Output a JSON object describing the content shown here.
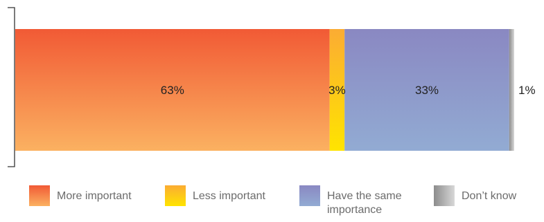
{
  "chart_data": {
    "type": "bar",
    "orientation": "horizontal-stacked-100",
    "categories": [
      ""
    ],
    "series": [
      {
        "name": "More important",
        "values": [
          63
        ],
        "label": "63%",
        "color_top": "#f15a35",
        "color_bottom": "#fbb161"
      },
      {
        "name": "Less important",
        "values": [
          3
        ],
        "label": "3%",
        "color_top": "#fbac33",
        "color_bottom": "#ffe400"
      },
      {
        "name": "Have the same importance",
        "values": [
          33
        ],
        "label": "33%",
        "color_top": "#8a88c2",
        "color_bottom": "#92abd3"
      },
      {
        "name": "Don’t know",
        "values": [
          1
        ],
        "label": "1%",
        "color_top": "#8c8c8c",
        "color_bottom": "#d8d8d8"
      }
    ],
    "xlim": [
      0,
      100
    ],
    "grid": false,
    "legend_position": "bottom"
  },
  "legend": [
    {
      "label": "More important"
    },
    {
      "label": "Less important"
    },
    {
      "label": "Have the same importance"
    },
    {
      "label": "Don’t know"
    }
  ]
}
